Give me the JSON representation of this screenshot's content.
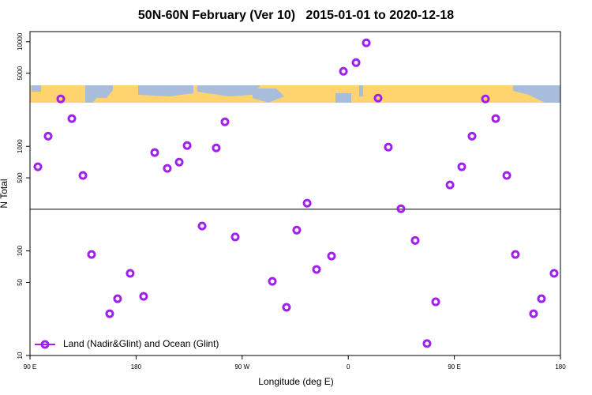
{
  "chart_data": {
    "type": "scatter",
    "title": "50N-60N February (Ver 10)   2015-01-01 to 2020-12-18",
    "x_label": "Longitude (deg E)",
    "y_label": "N Total",
    "log_y": true,
    "legend": "bottomleft",
    "xlim": [
      90,
      540
    ],
    "ylim": [
      10,
      12500
    ],
    "xticks": [
      {
        "value": 90,
        "label": "90 E"
      },
      {
        "value": 180,
        "label": "180"
      },
      {
        "value": 270,
        "label": "90 W"
      },
      {
        "value": 360,
        "label": "0"
      },
      {
        "value": 450,
        "label": "90 E"
      },
      {
        "value": 540,
        "label": "180"
      }
    ],
    "yticks": [
      10,
      50,
      100,
      500,
      1000,
      5000,
      10000
    ],
    "hline": 250,
    "series": [
      {
        "name": "Land (Nadir&Glint) and Ocean (Glint)",
        "color": "#a020f0",
        "x": [
          96.7,
          105.4,
          116.1,
          125.5,
          134.9,
          142.2,
          157.6,
          164.3,
          175.0,
          186.4,
          195.8,
          206.5,
          216.6,
          223.3,
          236.0,
          248.0,
          255.4,
          264.1,
          295.6,
          307.6,
          316.3,
          325.1,
          333.1,
          345.8,
          355.9,
          366.6,
          375.3,
          385.3,
          394.0,
          404.7,
          416.8,
          426.8,
          434.2,
          446.3,
          456.3,
          465.0,
          476.4,
          485.1,
          494.5,
          501.8,
          517.2,
          523.9,
          534.6
        ],
        "values": [
          637,
          1250,
          2840,
          1840,
          526,
          92.5,
          25.1,
          34.9,
          61,
          36.8,
          871,
          615,
          706,
          1018,
          173,
          966,
          1714,
          136,
          51.2,
          28.9,
          158,
          286,
          66.5,
          89.3,
          5212,
          6310,
          9750,
          2886,
          982,
          253,
          126,
          13,
          32.6,
          427,
          637,
          1250,
          2840,
          1840,
          526,
          92.5,
          25.1,
          34.9,
          61
        ]
      }
    ]
  }
}
